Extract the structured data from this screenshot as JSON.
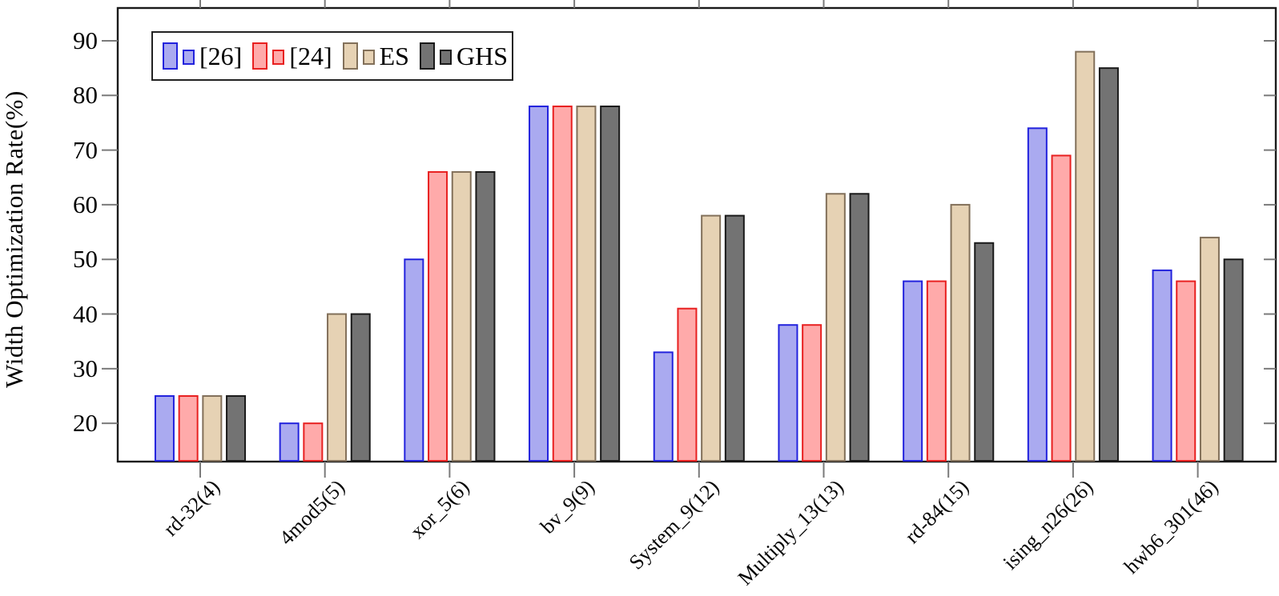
{
  "chart_data": {
    "type": "bar",
    "title": "",
    "xlabel": "",
    "ylabel": "Width Optimization Rate(%)",
    "ylim": [
      13,
      96
    ],
    "yticks": [
      20,
      30,
      40,
      50,
      60,
      70,
      80,
      90
    ],
    "grid": false,
    "legend_position": "top-left",
    "categories": [
      "rd-32(4)",
      "4mod5(5)",
      "xor_5(6)",
      "bv_9(9)",
      "System_9(12)",
      "Multiply_13(13)",
      "rd-84(15)",
      "ising_n26(26)",
      "hwb6_301(46)"
    ],
    "series": [
      {
        "name": "[26]",
        "fill": "#aaaaf0",
        "stroke": "#2222dd",
        "values": [
          25,
          20,
          50,
          78,
          33,
          38,
          46,
          74,
          48
        ]
      },
      {
        "name": "[24]",
        "fill": "#ffaaaa",
        "stroke": "#e82020",
        "values": [
          25,
          20,
          66,
          78,
          41,
          38,
          46,
          69,
          46
        ]
      },
      {
        "name": "ES",
        "fill": "#e6d2b4",
        "stroke": "#82705a",
        "values": [
          25,
          40,
          66,
          78,
          58,
          62,
          60,
          88,
          54
        ]
      },
      {
        "name": "GHS",
        "fill": "#737373",
        "stroke": "#1a1a1a",
        "values": [
          25,
          40,
          66,
          78,
          58,
          62,
          53,
          85,
          50
        ]
      }
    ],
    "colors": {
      "frame": "#1a1a1a",
      "tick": "#7a7a7a",
      "text": "#000000",
      "background": "#ffffff"
    }
  }
}
